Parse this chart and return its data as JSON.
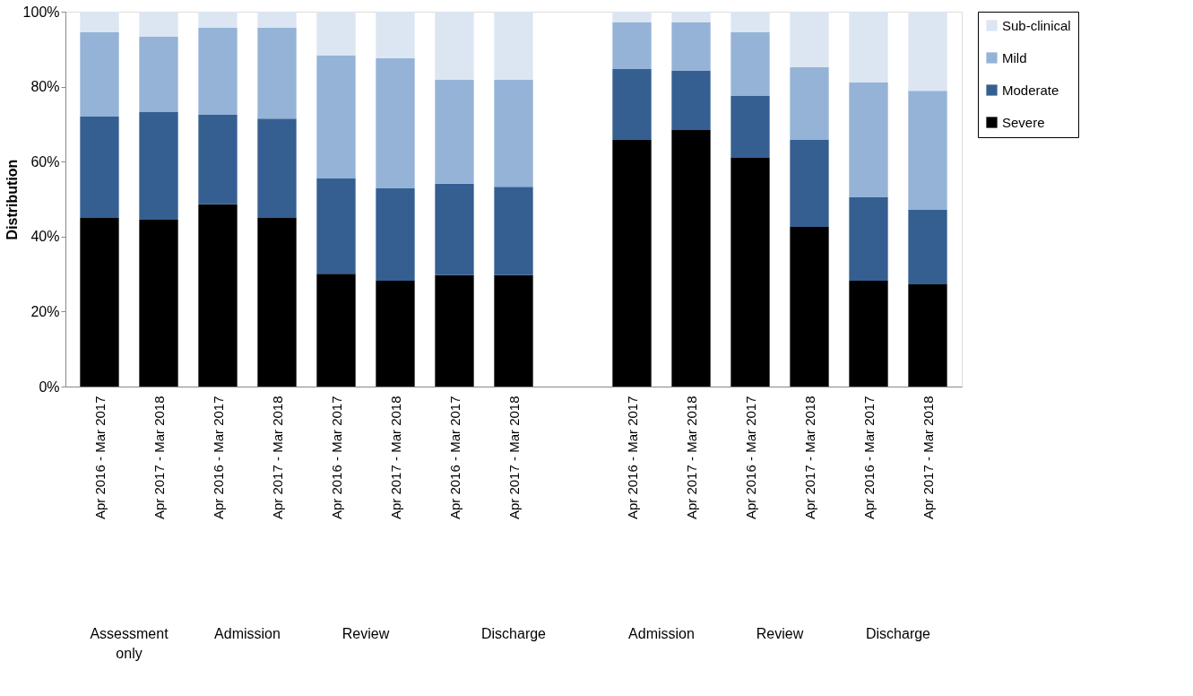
{
  "chart_data": {
    "type": "bar",
    "stacked": true,
    "ylabel": "Distribution",
    "categories": [
      "Apr 2016 - Mar 2017",
      "Apr 2017 - Mar 2018",
      "Apr 2016 - Mar 2017",
      "Apr 2017 - Mar 2018",
      "Apr 2016 - Mar 2017",
      "Apr 2017 - Mar 2018",
      "Apr 2016 - Mar 2017",
      "Apr 2017 - Mar 2018",
      null,
      "Apr 2016 - Mar 2017",
      "Apr 2017 - Mar 2018",
      "Apr 2016 - Mar 2017",
      "Apr 2017 - Mar 2018",
      "Apr 2016 - Mar 2017",
      "Apr 2017 - Mar 2018"
    ],
    "series": [
      {
        "name": "Severe",
        "color": "#000000",
        "values": [
          45.0,
          44.5,
          48.6,
          45.0,
          30.1,
          28.2,
          29.7,
          29.7,
          null,
          65.8,
          68.4,
          61.0,
          42.6,
          28.2,
          27.3
        ]
      },
      {
        "name": "Moderate",
        "color": "#355f91",
        "values": [
          27.0,
          28.7,
          23.9,
          26.5,
          25.4,
          24.7,
          24.4,
          23.6,
          null,
          18.9,
          15.8,
          16.5,
          23.2,
          22.3,
          19.8
        ]
      },
      {
        "name": "Mild",
        "color": "#95b3d7",
        "values": [
          22.5,
          20.1,
          23.2,
          24.2,
          32.8,
          34.7,
          27.7,
          28.5,
          null,
          12.4,
          12.9,
          17.0,
          19.4,
          30.6,
          31.8
        ]
      },
      {
        "name": "Sub-clinical",
        "color": "#dce6f2",
        "values": [
          5.5,
          6.7,
          4.3,
          4.3,
          11.7,
          12.4,
          18.2,
          18.2,
          null,
          2.9,
          2.9,
          5.5,
          14.8,
          18.9,
          21.1
        ]
      }
    ],
    "ylim": [
      0,
      100
    ],
    "yticks": [
      {
        "value": 0,
        "label": "0%"
      },
      {
        "value": 20,
        "label": "20%"
      },
      {
        "value": 40,
        "label": "40%"
      },
      {
        "value": 60,
        "label": "60%"
      },
      {
        "value": 80,
        "label": "80%"
      },
      {
        "value": 100,
        "label": "100%"
      }
    ],
    "grid": false,
    "legend": "right",
    "annotations": [
      "Assessment only",
      "Admission",
      "Review",
      "Discharge",
      "Admission",
      "Review",
      "Discharge"
    ]
  }
}
